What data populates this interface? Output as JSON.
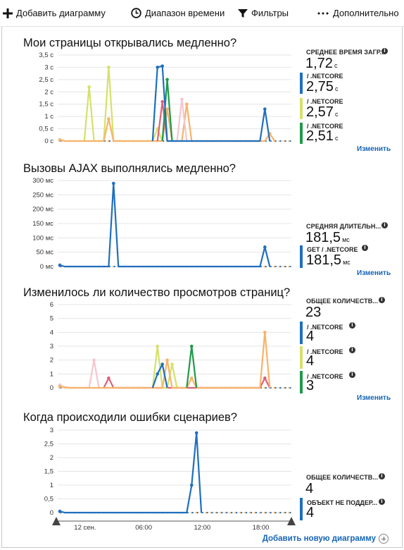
{
  "toolbar": {
    "add_chart": "Добавить диаграмму",
    "time_range": "Диапазон времени",
    "filters": "Фильтры",
    "more": "Дополнительно"
  },
  "colors": {
    "blue": "#1f6fbf",
    "lime": "#d4e26a",
    "green": "#1f9a4a",
    "orange": "#f8b36a",
    "red": "#e0607a",
    "pink": "#f5c6cf",
    "link": "#1565b8"
  },
  "sections": [
    {
      "title": "Мои страницы открывались медленно?",
      "metric": {
        "title": "СРЕДНЕЕ ВРЕМЯ ЗАГР...",
        "value": "1,72",
        "unit": "с"
      },
      "series": [
        {
          "name": "/ .NETCORE",
          "value": "2,75",
          "unit": "с",
          "color": "#1f6fbf"
        },
        {
          "name": "/ .NETCORE",
          "value": "2,57",
          "unit": "с",
          "color": "#d4e26a"
        },
        {
          "name": "/ .NETCORE",
          "value": "2,51",
          "unit": "с",
          "color": "#1f9a4a"
        }
      ],
      "link": "Изменить"
    },
    {
      "title": "Вызовы AJAX выполнялись медленно?",
      "metric": {
        "title": "СРЕДНЯЯ ДЛИТЕЛЬН...",
        "value": "181,5",
        "unit": "мс"
      },
      "series": [
        {
          "name": "GET / .NETCORE",
          "value": "181,5",
          "unit": "мс",
          "color": "#1f6fbf"
        }
      ],
      "link": "Изменить"
    },
    {
      "title": "Изменилось ли количество просмотров страниц?",
      "metric": {
        "title": "ОБЩЕЕ КОЛИЧЕСТВ...",
        "value": "23",
        "unit": ""
      },
      "series": [
        {
          "name": "/ .NETCORE",
          "value": "4",
          "unit": "",
          "color": "#1f6fbf"
        },
        {
          "name": "/ .NETCORE",
          "value": "4",
          "unit": "",
          "color": "#d4e26a"
        },
        {
          "name": "/ .NETCORE",
          "value": "3",
          "unit": "",
          "color": "#1f9a4a"
        }
      ],
      "link": "Изменить"
    },
    {
      "title": "Когда происходили ошибки сценариев?",
      "metric": {
        "title": "ОБЩЕЕ КОЛИЧЕСТВ...",
        "value": "4",
        "unit": ""
      },
      "series": [
        {
          "name": "ОБЪЕКТ НЕ ПОДДЕР...",
          "value": "4",
          "unit": "",
          "color": "#1f6fbf"
        }
      ],
      "link": ""
    }
  ],
  "add_new_chart": "Добавить новую диаграмму",
  "chart_data": [
    {
      "type": "line",
      "yticks": [
        "3,5 с",
        "3 с",
        "2,5 с",
        "2 с",
        "1,5 с",
        "1 с",
        "0,5 с",
        "0 с"
      ],
      "ylim": [
        0,
        3.5
      ],
      "x_count": 48,
      "series": [
        {
          "color": "#d4e26a",
          "points": [
            [
              5,
              0
            ],
            [
              6,
              2.2
            ],
            [
              7,
              0
            ],
            [
              9,
              0
            ],
            [
              10,
              3
            ],
            [
              11,
              0
            ],
            [
              19,
              0
            ],
            [
              20,
              0.5
            ],
            [
              21,
              0
            ]
          ]
        },
        {
          "color": "#f8b36a",
          "points": [
            [
              0,
              0.05
            ],
            [
              1,
              0
            ],
            [
              9,
              0
            ],
            [
              10,
              0.9
            ],
            [
              11,
              0
            ],
            [
              21,
              0
            ],
            [
              22,
              1.3
            ],
            [
              23,
              0
            ],
            [
              25,
              0
            ],
            [
              26,
              1.5
            ],
            [
              27,
              0
            ],
            [
              42,
              0
            ],
            [
              43,
              0.3
            ],
            [
              44,
              0
            ]
          ]
        },
        {
          "color": "#f5c6cf",
          "points": [
            [
              24,
              0
            ],
            [
              25,
              1.7
            ],
            [
              26,
              0
            ]
          ]
        },
        {
          "color": "#e0607a",
          "points": [
            [
              20,
              0
            ],
            [
              21,
              1.6
            ],
            [
              22,
              0
            ]
          ]
        },
        {
          "color": "#1f9a4a",
          "points": [
            [
              21,
              0
            ],
            [
              22,
              2.5
            ],
            [
              23,
              0
            ]
          ]
        },
        {
          "color": "#1f6fbf",
          "points": [
            [
              19,
              0
            ],
            [
              20,
              3.0
            ],
            [
              21,
              3.05
            ],
            [
              22,
              0
            ],
            [
              41,
              0
            ],
            [
              42,
              1.3
            ],
            [
              43,
              0
            ]
          ]
        }
      ]
    },
    {
      "type": "line",
      "yticks": [
        "300 мс",
        "250 мс",
        "200 мс",
        "150 мс",
        "100 мс",
        "50 мс",
        "0 мс"
      ],
      "ylim": [
        0,
        300
      ],
      "x_count": 48,
      "series": [
        {
          "color": "#1f6fbf",
          "points": [
            [
              0,
              5
            ],
            [
              1,
              0
            ],
            [
              10,
              0
            ],
            [
              11,
              290
            ],
            [
              12,
              0
            ],
            [
              41,
              0
            ],
            [
              42,
              68
            ],
            [
              43,
              0
            ]
          ]
        }
      ]
    },
    {
      "type": "line",
      "yticks": [
        "6",
        "5",
        "4",
        "3",
        "2",
        "1",
        "0"
      ],
      "ylim": [
        0,
        6
      ],
      "x_count": 48,
      "series": [
        {
          "color": "#f5c6cf",
          "points": [
            [
              0,
              0.2
            ],
            [
              1,
              0
            ],
            [
              6,
              0
            ],
            [
              7,
              2
            ],
            [
              8,
              0
            ]
          ]
        },
        {
          "color": "#e0607a",
          "points": [
            [
              9,
              0
            ],
            [
              10,
              0.7
            ],
            [
              11,
              0
            ],
            [
              41,
              0
            ],
            [
              42,
              0.7
            ],
            [
              43,
              0
            ]
          ]
        },
        {
          "color": "#d4e26a",
          "points": [
            [
              19,
              0
            ],
            [
              20,
              3
            ],
            [
              21,
              0
            ],
            [
              22,
              0
            ],
            [
              23,
              1.7
            ],
            [
              24,
              0
            ]
          ]
        },
        {
          "color": "#f8b36a",
          "points": [
            [
              0,
              0.1
            ],
            [
              2,
              0
            ],
            [
              21,
              0
            ],
            [
              22,
              2
            ],
            [
              23,
              0
            ],
            [
              26,
              0
            ],
            [
              27,
              0.7
            ],
            [
              28,
              0
            ],
            [
              41,
              0
            ],
            [
              42,
              4
            ],
            [
              43,
              0
            ]
          ]
        },
        {
          "color": "#1f9a4a",
          "points": [
            [
              26,
              0
            ],
            [
              27,
              3
            ],
            [
              28,
              0
            ]
          ]
        },
        {
          "color": "#1f6fbf",
          "points": [
            [
              19,
              0
            ],
            [
              20,
              1
            ],
            [
              21,
              1.7
            ],
            [
              22,
              0
            ]
          ]
        }
      ]
    },
    {
      "type": "line",
      "yticks": [
        "3",
        "2,5",
        "2",
        "1,5",
        "1",
        "0,5",
        "0"
      ],
      "ylim": [
        0,
        3
      ],
      "x_count": 48,
      "xticks": [
        {
          "label": "12 сен.",
          "index": 2
        },
        {
          "label": "06:00",
          "index": 14
        },
        {
          "label": "12:00",
          "index": 26
        },
        {
          "label": "18:00",
          "index": 38
        }
      ],
      "series": [
        {
          "color": "#1f6fbf",
          "points": [
            [
              0,
              0.05
            ],
            [
              1,
              0
            ],
            [
              26,
              0
            ],
            [
              27,
              1
            ],
            [
              28,
              2.9
            ],
            [
              29,
              0
            ]
          ]
        }
      ]
    }
  ]
}
